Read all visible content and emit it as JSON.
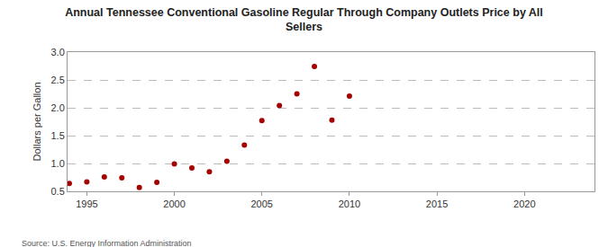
{
  "chart_data": {
    "type": "scatter",
    "title": "Annual Tennessee Conventional Gasoline Regular Through Company Outlets Price by All Sellers",
    "y_label": "Dollars per Gallon",
    "source": "Source: U.S. Energy Information Administration",
    "x": [
      1994,
      1995,
      1996,
      1997,
      1998,
      1999,
      2000,
      2001,
      2002,
      2003,
      2004,
      2005,
      2006,
      2007,
      2008,
      2009,
      2010
    ],
    "values": [
      0.64,
      0.67,
      0.76,
      0.74,
      0.57,
      0.66,
      0.99,
      0.92,
      0.85,
      1.04,
      1.33,
      1.77,
      2.04,
      2.25,
      2.74,
      1.78,
      2.21
    ],
    "color": "#a50000",
    "marker": "circle",
    "xlim": [
      1993.9,
      2024
    ],
    "xticks": [
      1995,
      2000,
      2005,
      2010,
      2015,
      2020
    ],
    "ylim": [
      0.5,
      3.0
    ],
    "yticks": [
      0.5,
      {
        "value": 1,
        "label": "1.0"
      },
      1.5,
      {
        "value": 2,
        "label": "2.0"
      },
      2.5,
      {
        "value": 3,
        "label": "3.0"
      }
    ],
    "grid": true
  }
}
